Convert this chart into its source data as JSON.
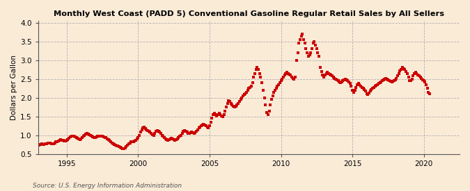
{
  "title": "Monthly West Coast (PADD 5) Conventional Gasoline Regular Retail Sales by All Sellers",
  "ylabel": "Dollars per Gallon",
  "source": "Source: U.S. Energy Information Administration",
  "background_color": "#faebd7",
  "marker_color": "#cc0000",
  "xlim": [
    1993.0,
    2022.5
  ],
  "ylim": [
    0.5,
    4.05
  ],
  "yticks": [
    0.5,
    1.0,
    1.5,
    2.0,
    2.5,
    3.0,
    3.5,
    4.0
  ],
  "xticks": [
    1995,
    2000,
    2005,
    2010,
    2015,
    2020
  ],
  "data": [
    [
      1993.08,
      0.74
    ],
    [
      1993.17,
      0.76
    ],
    [
      1993.25,
      0.77
    ],
    [
      1993.33,
      0.76
    ],
    [
      1993.42,
      0.76
    ],
    [
      1993.5,
      0.77
    ],
    [
      1993.58,
      0.78
    ],
    [
      1993.67,
      0.8
    ],
    [
      1993.75,
      0.8
    ],
    [
      1993.83,
      0.79
    ],
    [
      1993.92,
      0.78
    ],
    [
      1994.0,
      0.77
    ],
    [
      1994.08,
      0.78
    ],
    [
      1994.17,
      0.8
    ],
    [
      1994.25,
      0.82
    ],
    [
      1994.33,
      0.83
    ],
    [
      1994.42,
      0.85
    ],
    [
      1994.5,
      0.87
    ],
    [
      1994.58,
      0.88
    ],
    [
      1994.67,
      0.87
    ],
    [
      1994.75,
      0.86
    ],
    [
      1994.83,
      0.85
    ],
    [
      1994.92,
      0.85
    ],
    [
      1995.0,
      0.86
    ],
    [
      1995.08,
      0.88
    ],
    [
      1995.17,
      0.92
    ],
    [
      1995.25,
      0.95
    ],
    [
      1995.33,
      0.97
    ],
    [
      1995.42,
      0.98
    ],
    [
      1995.5,
      0.97
    ],
    [
      1995.58,
      0.95
    ],
    [
      1995.67,
      0.93
    ],
    [
      1995.75,
      0.92
    ],
    [
      1995.83,
      0.9
    ],
    [
      1995.92,
      0.89
    ],
    [
      1996.0,
      0.9
    ],
    [
      1996.08,
      0.93
    ],
    [
      1996.17,
      0.97
    ],
    [
      1996.25,
      1.0
    ],
    [
      1996.33,
      1.03
    ],
    [
      1996.42,
      1.05
    ],
    [
      1996.5,
      1.03
    ],
    [
      1996.58,
      1.01
    ],
    [
      1996.67,
      0.99
    ],
    [
      1996.75,
      0.97
    ],
    [
      1996.83,
      0.95
    ],
    [
      1996.92,
      0.93
    ],
    [
      1997.0,
      0.94
    ],
    [
      1997.08,
      0.96
    ],
    [
      1997.17,
      0.97
    ],
    [
      1997.25,
      0.98
    ],
    [
      1997.33,
      0.98
    ],
    [
      1997.42,
      0.98
    ],
    [
      1997.5,
      0.97
    ],
    [
      1997.58,
      0.96
    ],
    [
      1997.67,
      0.94
    ],
    [
      1997.75,
      0.93
    ],
    [
      1997.83,
      0.91
    ],
    [
      1997.92,
      0.89
    ],
    [
      1998.0,
      0.86
    ],
    [
      1998.08,
      0.83
    ],
    [
      1998.17,
      0.8
    ],
    [
      1998.25,
      0.78
    ],
    [
      1998.33,
      0.76
    ],
    [
      1998.42,
      0.74
    ],
    [
      1998.5,
      0.72
    ],
    [
      1998.58,
      0.71
    ],
    [
      1998.67,
      0.7
    ],
    [
      1998.75,
      0.68
    ],
    [
      1998.83,
      0.66
    ],
    [
      1998.92,
      0.65
    ],
    [
      1999.0,
      0.65
    ],
    [
      1999.08,
      0.67
    ],
    [
      1999.17,
      0.7
    ],
    [
      1999.25,
      0.74
    ],
    [
      1999.33,
      0.78
    ],
    [
      1999.42,
      0.8
    ],
    [
      1999.5,
      0.82
    ],
    [
      1999.58,
      0.83
    ],
    [
      1999.67,
      0.83
    ],
    [
      1999.75,
      0.85
    ],
    [
      1999.83,
      0.87
    ],
    [
      1999.92,
      0.9
    ],
    [
      2000.0,
      0.93
    ],
    [
      2000.08,
      1.0
    ],
    [
      2000.17,
      1.08
    ],
    [
      2000.25,
      1.15
    ],
    [
      2000.33,
      1.2
    ],
    [
      2000.42,
      1.22
    ],
    [
      2000.5,
      1.18
    ],
    [
      2000.58,
      1.15
    ],
    [
      2000.67,
      1.12
    ],
    [
      2000.75,
      1.1
    ],
    [
      2000.83,
      1.08
    ],
    [
      2000.92,
      1.05
    ],
    [
      2001.0,
      1.02
    ],
    [
      2001.08,
      1.0
    ],
    [
      2001.17,
      1.05
    ],
    [
      2001.25,
      1.1
    ],
    [
      2001.33,
      1.12
    ],
    [
      2001.42,
      1.1
    ],
    [
      2001.5,
      1.08
    ],
    [
      2001.58,
      1.05
    ],
    [
      2001.67,
      1.0
    ],
    [
      2001.75,
      0.97
    ],
    [
      2001.83,
      0.93
    ],
    [
      2001.92,
      0.9
    ],
    [
      2002.0,
      0.88
    ],
    [
      2002.08,
      0.87
    ],
    [
      2002.17,
      0.88
    ],
    [
      2002.25,
      0.9
    ],
    [
      2002.33,
      0.92
    ],
    [
      2002.42,
      0.9
    ],
    [
      2002.5,
      0.88
    ],
    [
      2002.58,
      0.87
    ],
    [
      2002.67,
      0.88
    ],
    [
      2002.75,
      0.9
    ],
    [
      2002.83,
      0.93
    ],
    [
      2002.92,
      0.97
    ],
    [
      2003.0,
      1.0
    ],
    [
      2003.08,
      1.05
    ],
    [
      2003.17,
      1.1
    ],
    [
      2003.25,
      1.12
    ],
    [
      2003.33,
      1.1
    ],
    [
      2003.42,
      1.08
    ],
    [
      2003.5,
      1.05
    ],
    [
      2003.58,
      1.05
    ],
    [
      2003.67,
      1.07
    ],
    [
      2003.75,
      1.08
    ],
    [
      2003.83,
      1.07
    ],
    [
      2003.92,
      1.05
    ],
    [
      2004.0,
      1.07
    ],
    [
      2004.08,
      1.1
    ],
    [
      2004.17,
      1.15
    ],
    [
      2004.25,
      1.2
    ],
    [
      2004.33,
      1.22
    ],
    [
      2004.42,
      1.25
    ],
    [
      2004.5,
      1.28
    ],
    [
      2004.58,
      1.3
    ],
    [
      2004.67,
      1.28
    ],
    [
      2004.75,
      1.25
    ],
    [
      2004.83,
      1.22
    ],
    [
      2004.92,
      1.2
    ],
    [
      2005.0,
      1.25
    ],
    [
      2005.08,
      1.35
    ],
    [
      2005.17,
      1.45
    ],
    [
      2005.25,
      1.55
    ],
    [
      2005.33,
      1.58
    ],
    [
      2005.42,
      1.55
    ],
    [
      2005.5,
      1.52
    ],
    [
      2005.58,
      1.55
    ],
    [
      2005.67,
      1.58
    ],
    [
      2005.75,
      1.55
    ],
    [
      2005.83,
      1.52
    ],
    [
      2005.92,
      1.5
    ],
    [
      2006.0,
      1.55
    ],
    [
      2006.08,
      1.65
    ],
    [
      2006.17,
      1.75
    ],
    [
      2006.25,
      1.85
    ],
    [
      2006.33,
      1.92
    ],
    [
      2006.42,
      1.9
    ],
    [
      2006.5,
      1.85
    ],
    [
      2006.58,
      1.8
    ],
    [
      2006.67,
      1.77
    ],
    [
      2006.75,
      1.75
    ],
    [
      2006.83,
      1.77
    ],
    [
      2006.92,
      1.8
    ],
    [
      2007.0,
      1.85
    ],
    [
      2007.08,
      1.9
    ],
    [
      2007.17,
      1.95
    ],
    [
      2007.25,
      2.0
    ],
    [
      2007.33,
      2.05
    ],
    [
      2007.42,
      2.08
    ],
    [
      2007.5,
      2.1
    ],
    [
      2007.58,
      2.15
    ],
    [
      2007.67,
      2.2
    ],
    [
      2007.75,
      2.25
    ],
    [
      2007.83,
      2.28
    ],
    [
      2007.92,
      2.3
    ],
    [
      2008.0,
      2.4
    ],
    [
      2008.08,
      2.55
    ],
    [
      2008.17,
      2.65
    ],
    [
      2008.25,
      2.75
    ],
    [
      2008.33,
      2.8
    ],
    [
      2008.42,
      2.75
    ],
    [
      2008.5,
      2.65
    ],
    [
      2008.58,
      2.55
    ],
    [
      2008.67,
      2.4
    ],
    [
      2008.75,
      2.2
    ],
    [
      2008.83,
      2.0
    ],
    [
      2008.92,
      1.8
    ],
    [
      2009.0,
      1.6
    ],
    [
      2009.08,
      1.55
    ],
    [
      2009.17,
      1.65
    ],
    [
      2009.25,
      1.8
    ],
    [
      2009.33,
      1.95
    ],
    [
      2009.42,
      2.05
    ],
    [
      2009.5,
      2.15
    ],
    [
      2009.58,
      2.2
    ],
    [
      2009.67,
      2.25
    ],
    [
      2009.75,
      2.3
    ],
    [
      2009.83,
      2.35
    ],
    [
      2009.92,
      2.4
    ],
    [
      2010.0,
      2.45
    ],
    [
      2010.08,
      2.5
    ],
    [
      2010.17,
      2.55
    ],
    [
      2010.25,
      2.6
    ],
    [
      2010.33,
      2.65
    ],
    [
      2010.42,
      2.68
    ],
    [
      2010.5,
      2.65
    ],
    [
      2010.58,
      2.62
    ],
    [
      2010.67,
      2.6
    ],
    [
      2010.75,
      2.55
    ],
    [
      2010.83,
      2.52
    ],
    [
      2010.92,
      2.5
    ],
    [
      2011.0,
      2.55
    ],
    [
      2011.08,
      3.0
    ],
    [
      2011.17,
      3.2
    ],
    [
      2011.25,
      3.45
    ],
    [
      2011.33,
      3.55
    ],
    [
      2011.42,
      3.65
    ],
    [
      2011.5,
      3.7
    ],
    [
      2011.58,
      3.55
    ],
    [
      2011.67,
      3.45
    ],
    [
      2011.75,
      3.3
    ],
    [
      2011.83,
      3.2
    ],
    [
      2011.92,
      3.1
    ],
    [
      2012.0,
      3.15
    ],
    [
      2012.08,
      3.2
    ],
    [
      2012.17,
      3.3
    ],
    [
      2012.25,
      3.45
    ],
    [
      2012.33,
      3.5
    ],
    [
      2012.42,
      3.4
    ],
    [
      2012.5,
      3.3
    ],
    [
      2012.58,
      3.2
    ],
    [
      2012.67,
      3.1
    ],
    [
      2012.75,
      2.8
    ],
    [
      2012.83,
      2.7
    ],
    [
      2012.92,
      2.6
    ],
    [
      2013.0,
      2.55
    ],
    [
      2013.08,
      2.6
    ],
    [
      2013.17,
      2.65
    ],
    [
      2013.25,
      2.68
    ],
    [
      2013.33,
      2.65
    ],
    [
      2013.42,
      2.62
    ],
    [
      2013.5,
      2.6
    ],
    [
      2013.58,
      2.58
    ],
    [
      2013.67,
      2.55
    ],
    [
      2013.75,
      2.52
    ],
    [
      2013.83,
      2.5
    ],
    [
      2013.92,
      2.48
    ],
    [
      2014.0,
      2.45
    ],
    [
      2014.08,
      2.42
    ],
    [
      2014.17,
      2.4
    ],
    [
      2014.25,
      2.42
    ],
    [
      2014.33,
      2.45
    ],
    [
      2014.42,
      2.48
    ],
    [
      2014.5,
      2.5
    ],
    [
      2014.58,
      2.48
    ],
    [
      2014.67,
      2.45
    ],
    [
      2014.75,
      2.42
    ],
    [
      2014.83,
      2.38
    ],
    [
      2014.92,
      2.3
    ],
    [
      2015.0,
      2.2
    ],
    [
      2015.08,
      2.15
    ],
    [
      2015.17,
      2.2
    ],
    [
      2015.25,
      2.28
    ],
    [
      2015.33,
      2.35
    ],
    [
      2015.42,
      2.38
    ],
    [
      2015.5,
      2.35
    ],
    [
      2015.58,
      2.3
    ],
    [
      2015.67,
      2.28
    ],
    [
      2015.75,
      2.25
    ],
    [
      2015.83,
      2.22
    ],
    [
      2015.92,
      2.18
    ],
    [
      2016.0,
      2.1
    ],
    [
      2016.08,
      2.08
    ],
    [
      2016.17,
      2.12
    ],
    [
      2016.25,
      2.18
    ],
    [
      2016.33,
      2.22
    ],
    [
      2016.42,
      2.25
    ],
    [
      2016.5,
      2.28
    ],
    [
      2016.58,
      2.3
    ],
    [
      2016.67,
      2.32
    ],
    [
      2016.75,
      2.35
    ],
    [
      2016.83,
      2.38
    ],
    [
      2016.92,
      2.4
    ],
    [
      2017.0,
      2.42
    ],
    [
      2017.08,
      2.45
    ],
    [
      2017.17,
      2.48
    ],
    [
      2017.25,
      2.5
    ],
    [
      2017.33,
      2.52
    ],
    [
      2017.42,
      2.5
    ],
    [
      2017.5,
      2.48
    ],
    [
      2017.58,
      2.45
    ],
    [
      2017.67,
      2.43
    ],
    [
      2017.75,
      2.42
    ],
    [
      2017.83,
      2.43
    ],
    [
      2017.92,
      2.45
    ],
    [
      2018.0,
      2.48
    ],
    [
      2018.08,
      2.52
    ],
    [
      2018.17,
      2.58
    ],
    [
      2018.25,
      2.65
    ],
    [
      2018.33,
      2.72
    ],
    [
      2018.42,
      2.75
    ],
    [
      2018.5,
      2.8
    ],
    [
      2018.58,
      2.78
    ],
    [
      2018.67,
      2.75
    ],
    [
      2018.75,
      2.7
    ],
    [
      2018.83,
      2.65
    ],
    [
      2018.92,
      2.55
    ],
    [
      2019.0,
      2.45
    ],
    [
      2019.08,
      2.45
    ],
    [
      2019.17,
      2.5
    ],
    [
      2019.25,
      2.58
    ],
    [
      2019.33,
      2.65
    ],
    [
      2019.42,
      2.68
    ],
    [
      2019.5,
      2.65
    ],
    [
      2019.58,
      2.6
    ],
    [
      2019.67,
      2.58
    ],
    [
      2019.75,
      2.55
    ],
    [
      2019.83,
      2.52
    ],
    [
      2019.92,
      2.48
    ],
    [
      2020.0,
      2.45
    ],
    [
      2020.08,
      2.42
    ],
    [
      2020.17,
      2.35
    ],
    [
      2020.25,
      2.25
    ],
    [
      2020.33,
      2.15
    ],
    [
      2020.42,
      2.1
    ]
  ]
}
